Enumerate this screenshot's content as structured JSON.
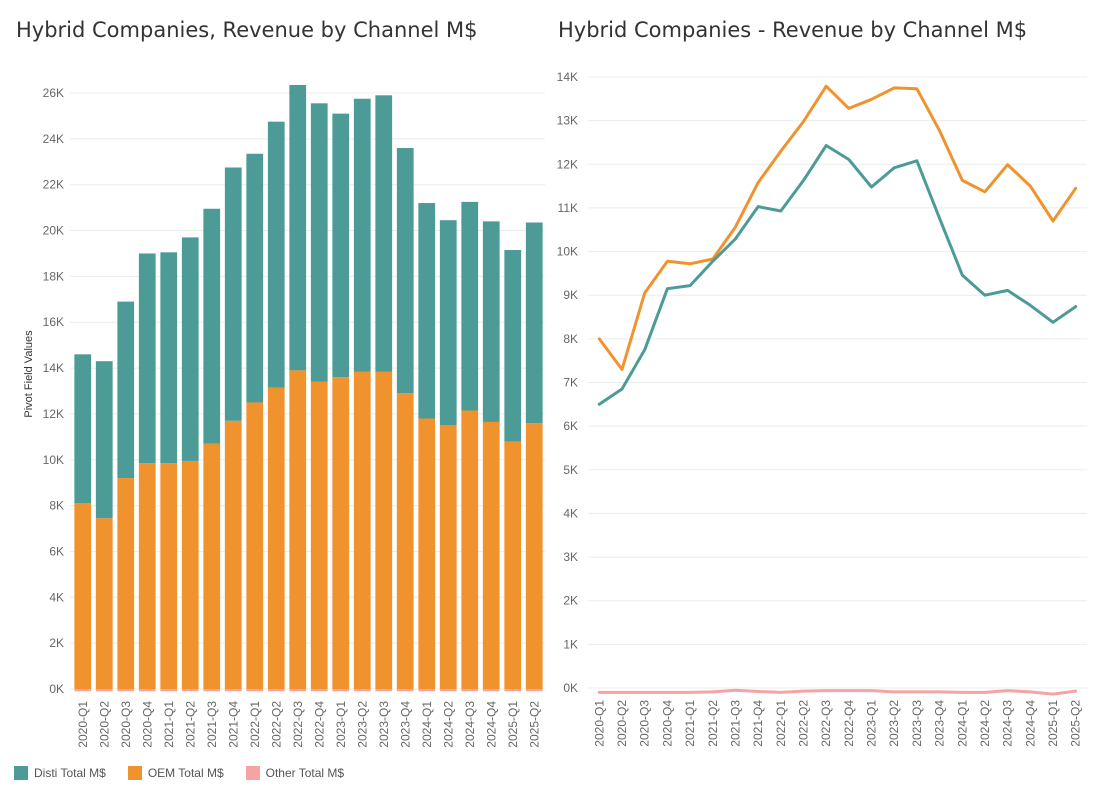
{
  "colors": {
    "disti": "#4d9b96",
    "oem": "#f0932f",
    "other": "#f5a3a3",
    "grid": "#ececec"
  },
  "chart_data": [
    {
      "type": "bar",
      "stacked": true,
      "title": "Hybrid Companies, Revenue by Channel M$",
      "ylabel": "Pivot Field Values",
      "xlabel": "",
      "ylim": [
        0,
        27000
      ],
      "yticks": [
        0,
        2000,
        4000,
        6000,
        8000,
        10000,
        12000,
        14000,
        16000,
        18000,
        20000,
        22000,
        24000,
        26000
      ],
      "ytick_labels": [
        "0K",
        "2K",
        "4K",
        "6K",
        "8K",
        "10K",
        "12K",
        "14K",
        "16K",
        "18K",
        "20K",
        "22K",
        "24K",
        "26K"
      ],
      "categories": [
        "2020-Q1",
        "2020-Q2",
        "2020-Q3",
        "2020-Q4",
        "2021-Q1",
        "2021-Q2",
        "2021-Q3",
        "2021-Q4",
        "2022-Q1",
        "2022-Q2",
        "2022-Q3",
        "2022-Q4",
        "2023-Q1",
        "2023-Q2",
        "2023-Q3",
        "2023-Q4",
        "2024-Q1",
        "2024-Q2",
        "2024-Q3",
        "2024-Q4",
        "2025-Q1",
        "2025-Q2"
      ],
      "series": [
        {
          "name": "Other Total M$",
          "values": [
            -100,
            -100,
            -100,
            -100,
            -100,
            -100,
            -100,
            -100,
            -100,
            -100,
            -100,
            -100,
            -100,
            -100,
            -100,
            -100,
            -100,
            -100,
            -100,
            -100,
            -100,
            -100
          ]
        },
        {
          "name": "OEM Total M$",
          "values": [
            8100,
            7450,
            9200,
            9850,
            9850,
            9950,
            10700,
            11700,
            12500,
            13150,
            13900,
            13400,
            13600,
            13850,
            13850,
            12900,
            11800,
            11500,
            12150,
            11650,
            10800,
            11600
          ]
        },
        {
          "name": "Disti Total M$",
          "values": [
            6500,
            6850,
            7700,
            9150,
            9200,
            9750,
            10250,
            11050,
            10850,
            11600,
            12450,
            12150,
            11500,
            11900,
            12050,
            10700,
            9400,
            8950,
            9100,
            8750,
            8350,
            8750
          ]
        }
      ]
    },
    {
      "type": "line",
      "title": "Hybrid Companies - Revenue by Channel M$",
      "xlabel": "",
      "ylabel": "",
      "ylim": [
        -100,
        14300
      ],
      "yticks": [
        0,
        1000,
        2000,
        3000,
        4000,
        5000,
        6000,
        7000,
        8000,
        9000,
        10000,
        11000,
        12000,
        13000,
        14000
      ],
      "ytick_labels": [
        "0K",
        "1K",
        "2K",
        "3K",
        "4K",
        "5K",
        "6K",
        "7K",
        "8K",
        "9K",
        "10K",
        "11K",
        "12K",
        "13K",
        "14K"
      ],
      "categories": [
        "2020-Q1",
        "2020-Q2",
        "2020-Q3",
        "2020-Q4",
        "2021-Q1",
        "2021-Q2",
        "2021-Q3",
        "2021-Q4",
        "2022-Q1",
        "2022-Q2",
        "2022-Q3",
        "2022-Q4",
        "2023-Q1",
        "2023-Q2",
        "2023-Q3",
        "2023-Q4",
        "2024-Q1",
        "2024-Q2",
        "2024-Q3",
        "2024-Q4",
        "2025-Q1",
        "2025-Q2"
      ],
      "series": [
        {
          "name": "OEM Total M$",
          "values": [
            8000,
            7300,
            9050,
            9780,
            9720,
            9830,
            10560,
            11580,
            12300,
            12980,
            13790,
            13280,
            13490,
            13750,
            13730,
            12770,
            11630,
            11370,
            11990,
            11500,
            10700,
            11450
          ]
        },
        {
          "name": "Disti Total M$",
          "values": [
            6500,
            6850,
            7750,
            9150,
            9220,
            9780,
            10290,
            11030,
            10930,
            11630,
            12430,
            12110,
            11480,
            11920,
            12080,
            10760,
            9460,
            9000,
            9110,
            8770,
            8380,
            8740
          ]
        },
        {
          "name": "Other Total M$",
          "values": [
            -100,
            -100,
            -100,
            -100,
            -100,
            -90,
            -50,
            -80,
            -100,
            -70,
            -60,
            -60,
            -60,
            -90,
            -90,
            -90,
            -100,
            -100,
            -60,
            -90,
            -140,
            -70
          ]
        }
      ]
    }
  ],
  "legend": [
    {
      "label": "Disti Total M$",
      "color_key": "disti"
    },
    {
      "label": "OEM Total M$",
      "color_key": "oem"
    },
    {
      "label": "Other Total M$",
      "color_key": "other"
    }
  ]
}
